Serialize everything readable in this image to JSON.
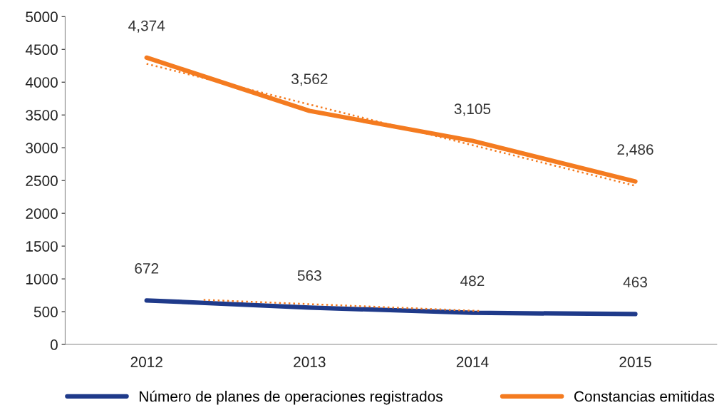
{
  "chart_data": {
    "type": "line",
    "x": [
      2012,
      2013,
      2014,
      2015
    ],
    "xlim": [
      2011.5,
      2015.5
    ],
    "xticks": [
      2012,
      2013,
      2014,
      2015
    ],
    "ylim": [
      0,
      5000
    ],
    "yticks": [
      0,
      500,
      1000,
      1500,
      2000,
      2500,
      3000,
      3500,
      4000,
      4500,
      5000
    ],
    "grid": false,
    "legend": "bottom",
    "series": [
      {
        "name": "Número de planes de operaciones registrados",
        "color": "#1f3a8a",
        "values": [
          672,
          563,
          482,
          463
        ],
        "value_labels": [
          "672",
          "563",
          "482",
          "463"
        ]
      },
      {
        "name": "Constancias emitidas",
        "color": "#f47b20",
        "values": [
          4374,
          3562,
          3105,
          2486
        ],
        "value_labels": [
          "4,374",
          "3,562",
          "3,105",
          "2,486"
        ]
      },
      {
        "type": "line",
        "color": "#f47b20",
        "line_style": "dotted",
        "x": [
          2012,
          2015
        ],
        "values": [
          4280,
          2420
        ]
      },
      {
        "type": "line",
        "color": "#f47b20",
        "line_style": "dotted",
        "x": [
          2012.35,
          2014.05
        ],
        "values": [
          680,
          510
        ]
      }
    ]
  }
}
